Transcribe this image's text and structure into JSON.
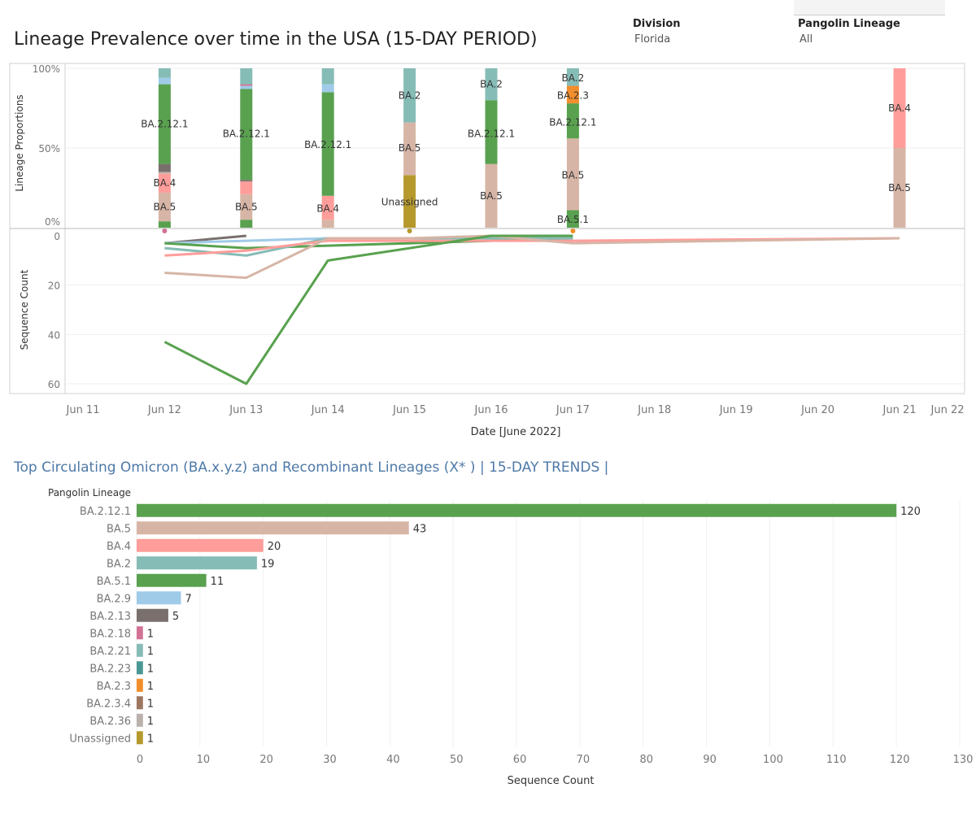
{
  "header": {
    "title": "Lineage Prevalence over time in the USA (15-DAY PERIOD)",
    "filters": [
      {
        "label": "Division",
        "value": "Florida"
      },
      {
        "label": "Pangolin Lineage",
        "value": "All"
      }
    ]
  },
  "colors": {
    "BA.2.12.1": "#59a14f",
    "BA.5": "#d7b5a6",
    "BA.4": "#ff9d9a",
    "BA.2": "#86bcb6",
    "BA.5.1": "#59a14f",
    "BA.2.9": "#a0cbe8",
    "BA.2.13": "#79706e",
    "BA.2.18": "#d37295",
    "BA.2.21": "#86bcb6",
    "BA.2.23": "#499894",
    "BA.2.3": "#f28e2b",
    "BA.2.3.4": "#9d7660",
    "BA.2.36": "#bab0ac",
    "Unassigned": "#b6992d"
  },
  "chart_data": [
    {
      "type": "bar",
      "stacked": true,
      "ylabel": "Lineage Proportions",
      "ytick_labels": [
        "100%",
        "50%",
        "0%"
      ],
      "ylim": [
        0,
        100
      ],
      "categories": [
        "Jun 12",
        "Jun 13",
        "Jun 14",
        "Jun 15",
        "Jun 16",
        "Jun 17",
        "Jun 21"
      ],
      "stacks": [
        {
          "date": "Jun 12",
          "segments": [
            {
              "lineage": "BA.5.1",
              "value": 4
            },
            {
              "lineage": "BA.5",
              "value": 18
            },
            {
              "lineage": "BA.4",
              "value": 12
            },
            {
              "lineage": "BA.2.36",
              "value": 1
            },
            {
              "lineage": "BA.2.13",
              "value": 5
            },
            {
              "lineage": "BA.2.12.1",
              "value": 50
            },
            {
              "lineage": "BA.2.9",
              "value": 4
            },
            {
              "lineage": "BA.2",
              "value": 6
            }
          ]
        },
        {
          "date": "Jun 13",
          "segments": [
            {
              "lineage": "BA.5.1",
              "value": 5
            },
            {
              "lineage": "BA.5",
              "value": 16
            },
            {
              "lineage": "BA.4",
              "value": 8
            },
            {
              "lineage": "BA.2.13",
              "value": 1
            },
            {
              "lineage": "BA.2.12.1",
              "value": 57
            },
            {
              "lineage": "BA.2.9",
              "value": 2
            },
            {
              "lineage": "BA.2.18",
              "value": 1
            },
            {
              "lineage": "BA.2",
              "value": 10
            }
          ]
        },
        {
          "date": "Jun 14",
          "segments": [
            {
              "lineage": "BA.5",
              "value": 5
            },
            {
              "lineage": "BA.4",
              "value": 15
            },
            {
              "lineage": "BA.2.12.1",
              "value": 65
            },
            {
              "lineage": "BA.2.9",
              "value": 5
            },
            {
              "lineage": "BA.2",
              "value": 10
            }
          ]
        },
        {
          "date": "Jun 15",
          "segments": [
            {
              "lineage": "Unassigned",
              "value": 33
            },
            {
              "lineage": "BA.5",
              "value": 33
            },
            {
              "lineage": "BA.2",
              "value": 34
            }
          ]
        },
        {
          "date": "Jun 16",
          "segments": [
            {
              "lineage": "BA.5",
              "value": 40
            },
            {
              "lineage": "BA.2.12.1",
              "value": 40
            },
            {
              "lineage": "BA.2",
              "value": 20
            }
          ]
        },
        {
          "date": "Jun 17",
          "segments": [
            {
              "lineage": "BA.5.1",
              "value": 11
            },
            {
              "lineage": "BA.5",
              "value": 45
            },
            {
              "lineage": "BA.2.12.1",
              "value": 22
            },
            {
              "lineage": "BA.2.3",
              "value": 11
            },
            {
              "lineage": "BA.2",
              "value": 11
            }
          ]
        },
        {
          "date": "Jun 21",
          "segments": [
            {
              "lineage": "BA.5",
              "value": 50
            },
            {
              "lineage": "BA.4",
              "value": 50
            }
          ]
        }
      ],
      "segment_labels": [
        {
          "date": "Jun 12",
          "text": "BA.2.12.1",
          "value": 65
        },
        {
          "date": "Jun 12",
          "text": "BA.4",
          "value": 28
        },
        {
          "date": "Jun 12",
          "text": "BA.5",
          "value": 13
        },
        {
          "date": "Jun 13",
          "text": "BA.2.12.1",
          "value": 59
        },
        {
          "date": "Jun 13",
          "text": "BA.5",
          "value": 13
        },
        {
          "date": "Jun 14",
          "text": "BA.2.12.1",
          "value": 52
        },
        {
          "date": "Jun 14",
          "text": "BA.4",
          "value": 12
        },
        {
          "date": "Jun 15",
          "text": "BA.2",
          "value": 83
        },
        {
          "date": "Jun 15",
          "text": "BA.5",
          "value": 50
        },
        {
          "date": "Jun 15",
          "text": "Unassigned",
          "value": 16
        },
        {
          "date": "Jun 16",
          "text": "BA.2",
          "value": 90
        },
        {
          "date": "Jun 16",
          "text": "BA.2.12.1",
          "value": 59
        },
        {
          "date": "Jun 16",
          "text": "BA.5",
          "value": 20
        },
        {
          "date": "Jun 17",
          "text": "BA.2",
          "value": 94
        },
        {
          "date": "Jun 17",
          "text": "BA.2.3",
          "value": 83
        },
        {
          "date": "Jun 17",
          "text": "BA.2.12.1",
          "value": 66
        },
        {
          "date": "Jun 17",
          "text": "BA.5",
          "value": 33
        },
        {
          "date": "Jun 17",
          "text": "BA.5.1",
          "value": 5
        },
        {
          "date": "Jun 21",
          "text": "BA.4",
          "value": 75
        },
        {
          "date": "Jun 21",
          "text": "BA.5",
          "value": 25
        }
      ]
    },
    {
      "type": "line",
      "ylabel": "Sequence Count",
      "xlabel": "Date [June 2022]",
      "yticks": [
        0,
        20,
        40,
        60
      ],
      "ylim": [
        0,
        64
      ],
      "x_ticks": [
        "Jun 11",
        "Jun 12",
        "Jun 13",
        "Jun 14",
        "Jun 15",
        "Jun 16",
        "Jun 17",
        "Jun 18",
        "Jun 19",
        "Jun 20",
        "Jun 21",
        "Jun 22"
      ],
      "series": [
        {
          "lineage": "BA.2.12.1",
          "x": [
            "Jun 12",
            "Jun 13",
            "Jun 14",
            "Jun 16",
            "Jun 17"
          ],
          "y": [
            43,
            60,
            10,
            0,
            0
          ]
        },
        {
          "lineage": "BA.5",
          "x": [
            "Jun 12",
            "Jun 13",
            "Jun 14",
            "Jun 15",
            "Jun 16",
            "Jun 17",
            "Jun 21"
          ],
          "y": [
            15,
            17,
            1,
            1,
            0,
            3,
            1
          ]
        },
        {
          "lineage": "BA.4",
          "x": [
            "Jun 12",
            "Jun 13",
            "Jun 14",
            "Jun 17",
            "Jun 21"
          ],
          "y": [
            8,
            6,
            2,
            2,
            1
          ]
        },
        {
          "lineage": "BA.2",
          "x": [
            "Jun 12",
            "Jun 13",
            "Jun 14",
            "Jun 15",
            "Jun 16",
            "Jun 17"
          ],
          "y": [
            5,
            8,
            1,
            1,
            1,
            1
          ]
        },
        {
          "lineage": "BA.5.1",
          "x": [
            "Jun 12",
            "Jun 13",
            "Jun 14",
            "Jun 17"
          ],
          "y": [
            3,
            5,
            4,
            1
          ]
        },
        {
          "lineage": "BA.2.9",
          "x": [
            "Jun 12",
            "Jun 13",
            "Jun 14"
          ],
          "y": [
            3,
            2,
            1
          ]
        },
        {
          "lineage": "BA.2.13",
          "x": [
            "Jun 12",
            "Jun 13"
          ],
          "y": [
            3,
            0
          ]
        },
        {
          "lineage": "BA.2.18",
          "x": [
            "Jun 12"
          ],
          "y": [
            0
          ]
        },
        {
          "lineage": "Unassigned",
          "x": [
            "Jun 15"
          ],
          "y": [
            0
          ]
        },
        {
          "lineage": "BA.2.3",
          "x": [
            "Jun 17"
          ],
          "y": [
            0
          ]
        }
      ]
    },
    {
      "type": "bar",
      "orientation": "horizontal",
      "title": "Top Circulating Omicron (BA.x.y.z) and Recombinant Lineages (X* )  | 15-DAY TRENDS |",
      "ylabel": "Pangolin Lineage",
      "xlabel": "Sequence Count",
      "xlim": [
        0,
        130
      ],
      "xticks": [
        0,
        10,
        20,
        30,
        40,
        50,
        60,
        70,
        80,
        90,
        100,
        110,
        120,
        130
      ],
      "categories": [
        "BA.2.12.1",
        "BA.5",
        "BA.4",
        "BA.2",
        "BA.5.1",
        "BA.2.9",
        "BA.2.13",
        "BA.2.18",
        "BA.2.21",
        "BA.2.23",
        "BA.2.3",
        "BA.2.3.4",
        "BA.2.36",
        "Unassigned"
      ],
      "values": [
        120,
        43,
        20,
        19,
        11,
        7,
        5,
        1,
        1,
        1,
        1,
        1,
        1,
        1
      ]
    }
  ]
}
